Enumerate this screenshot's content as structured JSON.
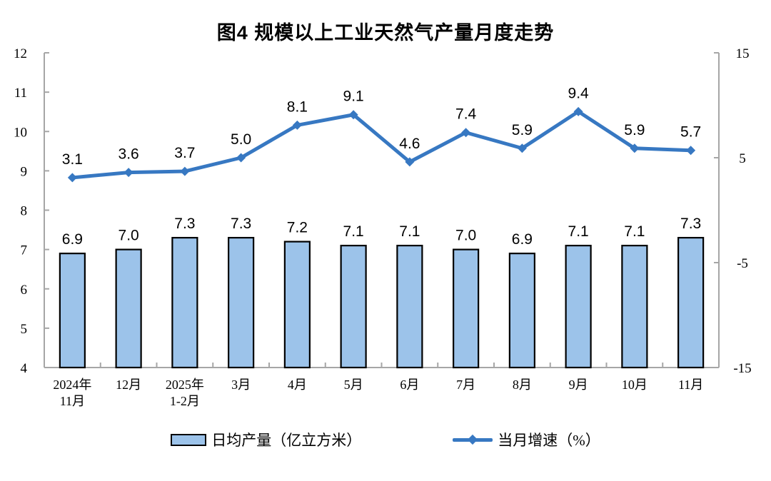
{
  "title": "图4  规模以上工业天然气产量月度走势",
  "colors": {
    "bar_fill": "#9CC3EA",
    "bar_border": "#000000",
    "line": "#3778C2",
    "axis": "#A6A6A6",
    "text": "#000000"
  },
  "legend": [
    {
      "label": "日均产量（亿立方米）",
      "type": "bar"
    },
    {
      "label": "当月增速（%）",
      "type": "line"
    }
  ],
  "chart_data": {
    "type": "combo",
    "title": "图4  规模以上工业天然气产量月度走势",
    "categories": [
      "2024年\n11月",
      "12月",
      "2025年\n1-2月",
      "3月",
      "4月",
      "5月",
      "6月",
      "7月",
      "8月",
      "9月",
      "10月",
      "11月"
    ],
    "series": [
      {
        "name": "日均产量（亿立方米）",
        "type": "bar",
        "axis": "left",
        "values": [
          6.9,
          7.0,
          7.3,
          7.3,
          7.2,
          7.1,
          7.1,
          7.0,
          6.9,
          7.1,
          7.1,
          7.3
        ]
      },
      {
        "name": "当月增速（%）",
        "type": "line",
        "axis": "right",
        "values": [
          3.1,
          3.6,
          3.7,
          5.0,
          8.1,
          9.1,
          4.6,
          7.4,
          5.9,
          9.4,
          5.9,
          5.7
        ]
      }
    ],
    "y_left": {
      "min": 4,
      "max": 12,
      "ticks": [
        12,
        11,
        10,
        9,
        8,
        7,
        6,
        5,
        4
      ]
    },
    "y_right": {
      "min": -15,
      "max": 15,
      "ticks": [
        15,
        5,
        -5,
        -15
      ]
    },
    "grid": false,
    "data_labels": true,
    "legend_position": "bottom"
  }
}
